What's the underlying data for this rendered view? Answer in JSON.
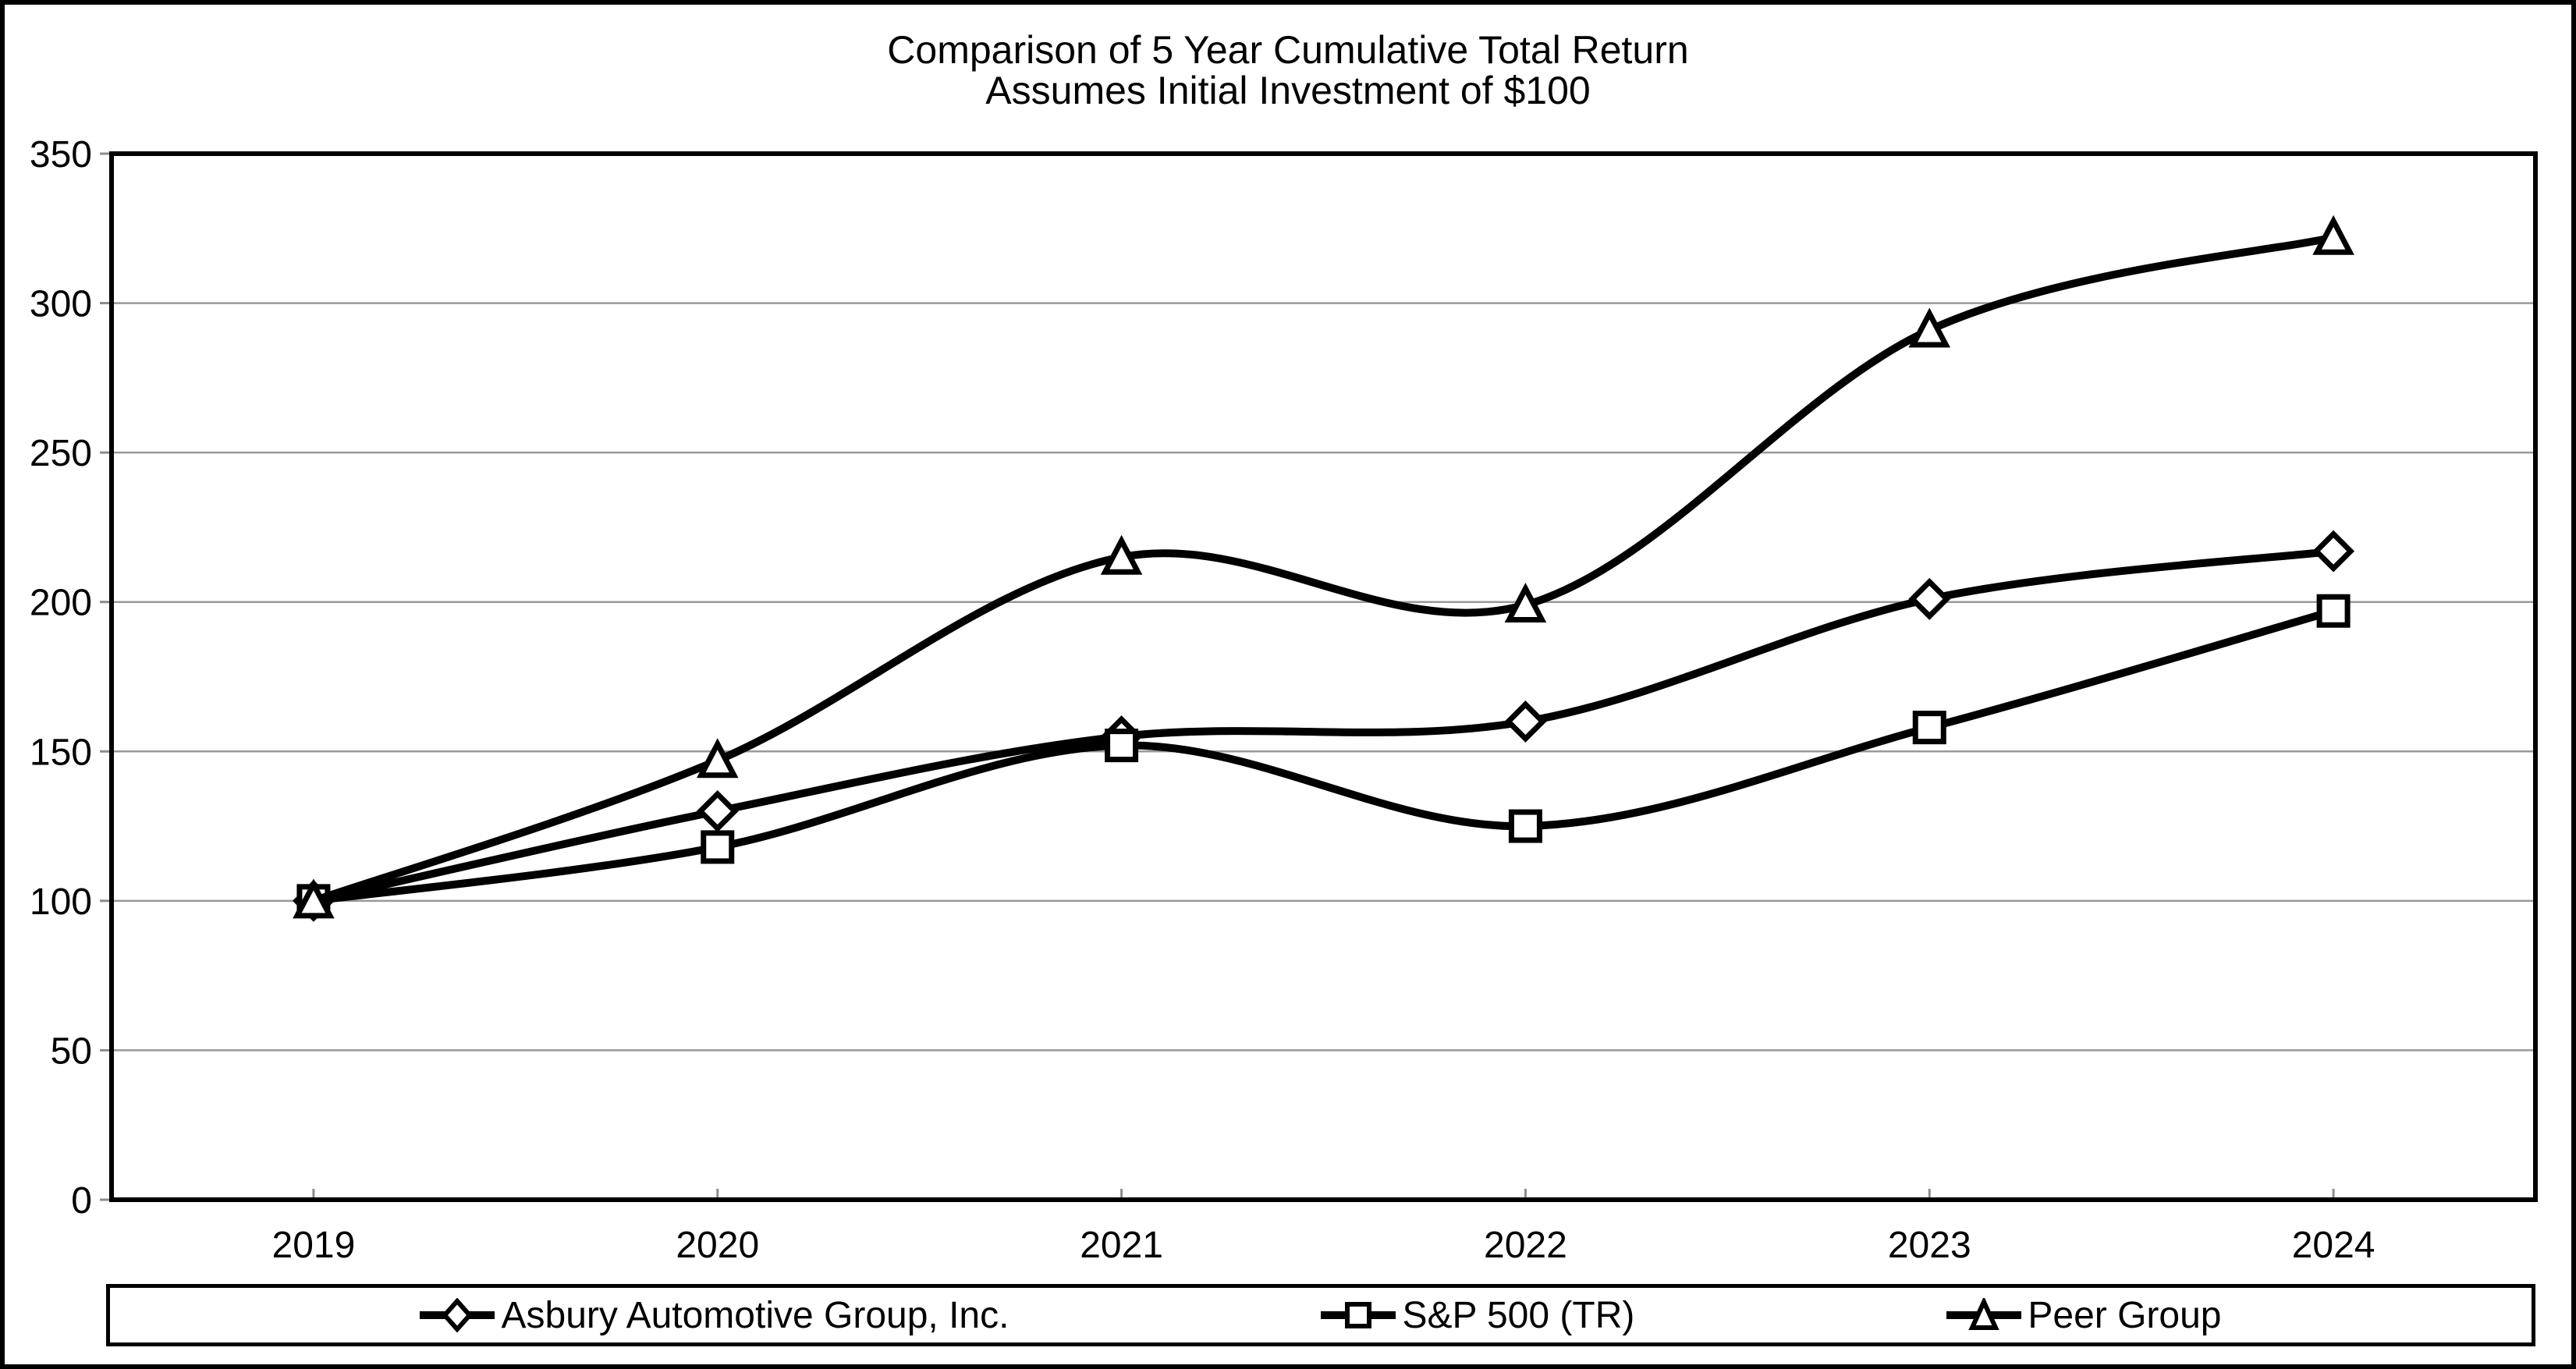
{
  "chart_data": {
    "type": "line",
    "title": "Comparison of 5 Year Cumulative Total Return",
    "subtitle": "Assumes Initial Investment of $100",
    "categories": [
      "2019",
      "2020",
      "2021",
      "2022",
      "2023",
      "2024"
    ],
    "series": [
      {
        "name": "Asbury Automotive Group, Inc.",
        "marker": "diamond",
        "values": [
          100,
          130,
          155,
          160,
          201,
          217
        ]
      },
      {
        "name": "S&P 500 (TR)",
        "marker": "square",
        "values": [
          100,
          118,
          152,
          125,
          158,
          197
        ]
      },
      {
        "name": "Peer Group",
        "marker": "triangle",
        "values": [
          100,
          147,
          215,
          199,
          291,
          322
        ]
      }
    ],
    "ylim": [
      0,
      350
    ],
    "y_ticks": [
      0,
      50,
      100,
      150,
      200,
      250,
      300,
      350
    ],
    "grid": "horizontal",
    "line_smoothing": true,
    "legend_position": "bottom",
    "colors": {
      "line": "#000000",
      "marker_fill": "#ffffff",
      "grid": "#999999",
      "tick": "#8c8c8c",
      "frame": "#000000",
      "background": "#ffffff",
      "text": "#000000"
    }
  }
}
